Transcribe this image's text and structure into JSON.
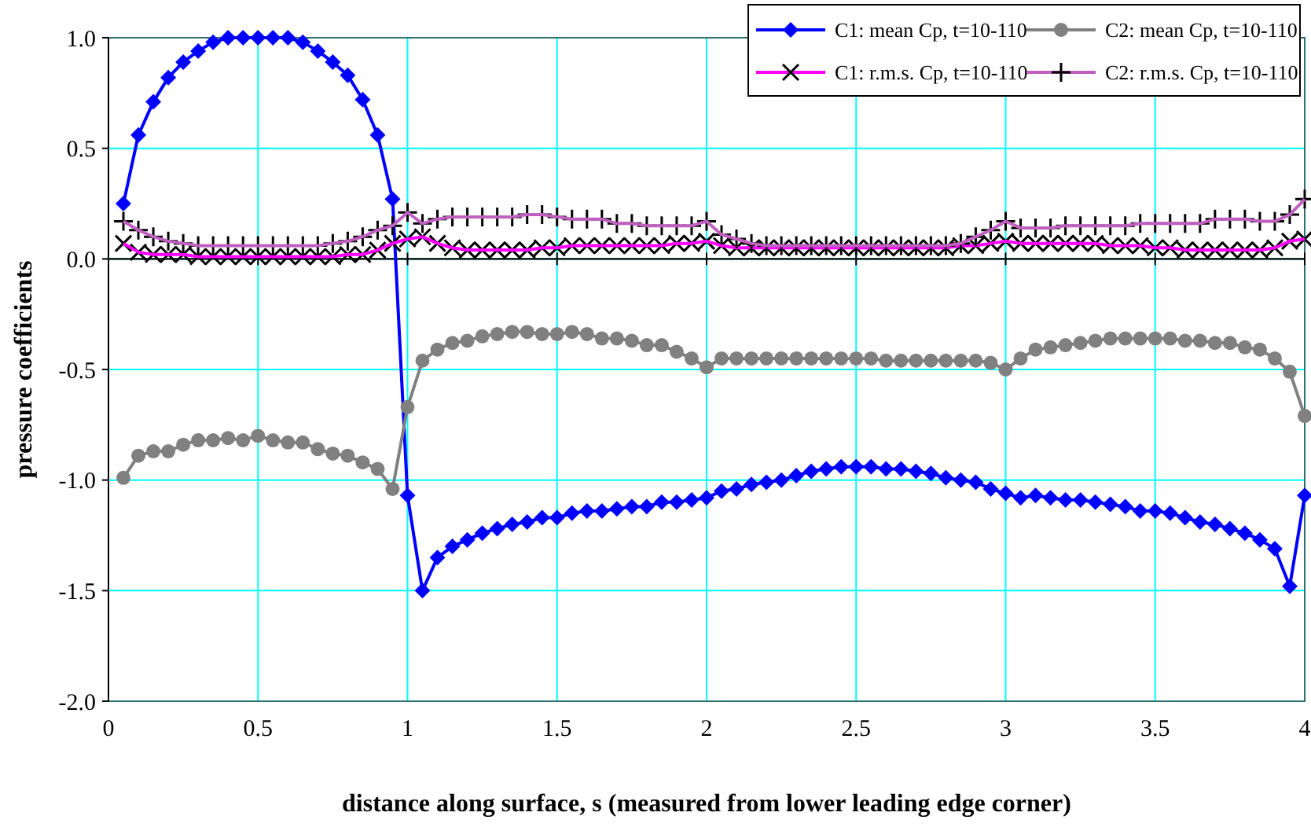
{
  "chart_data": {
    "type": "line",
    "xlabel": "distance along surface, s (measured from lower leading edge corner)",
    "ylabel": "pressure coefficients",
    "x": [
      0.05,
      0.1,
      0.15,
      0.2,
      0.25,
      0.3,
      0.35,
      0.4,
      0.45,
      0.5,
      0.55,
      0.6,
      0.65,
      0.7,
      0.75,
      0.8,
      0.85,
      0.9,
      0.95,
      1.0,
      1.05,
      1.1,
      1.15,
      1.2,
      1.25,
      1.3,
      1.35,
      1.4,
      1.45,
      1.5,
      1.55,
      1.6,
      1.65,
      1.7,
      1.75,
      1.8,
      1.85,
      1.9,
      1.95,
      2.0,
      2.05,
      2.1,
      2.15,
      2.2,
      2.25,
      2.3,
      2.35,
      2.4,
      2.45,
      2.5,
      2.55,
      2.6,
      2.65,
      2.7,
      2.75,
      2.8,
      2.85,
      2.9,
      2.95,
      3.0,
      3.05,
      3.1,
      3.15,
      3.2,
      3.25,
      3.3,
      3.35,
      3.4,
      3.45,
      3.5,
      3.55,
      3.6,
      3.65,
      3.7,
      3.75,
      3.8,
      3.85,
      3.9,
      3.95,
      4.0
    ],
    "series": [
      {
        "name": "C1: mean Cp, t=10-110",
        "color": "#0000ff",
        "marker": "diamond",
        "values": [
          0.25,
          0.56,
          0.71,
          0.82,
          0.89,
          0.94,
          0.98,
          1.0,
          1.0,
          1.0,
          1.0,
          1.0,
          0.98,
          0.94,
          0.89,
          0.83,
          0.72,
          0.56,
          0.27,
          -1.07,
          -1.5,
          -1.35,
          -1.3,
          -1.27,
          -1.24,
          -1.22,
          -1.2,
          -1.19,
          -1.17,
          -1.17,
          -1.15,
          -1.14,
          -1.14,
          -1.13,
          -1.12,
          -1.12,
          -1.1,
          -1.1,
          -1.09,
          -1.08,
          -1.05,
          -1.04,
          -1.02,
          -1.01,
          -1.0,
          -0.98,
          -0.96,
          -0.95,
          -0.94,
          -0.94,
          -0.94,
          -0.95,
          -0.95,
          -0.96,
          -0.97,
          -0.99,
          -1.0,
          -1.01,
          -1.04,
          -1.06,
          -1.08,
          -1.07,
          -1.08,
          -1.09,
          -1.09,
          -1.1,
          -1.11,
          -1.12,
          -1.14,
          -1.14,
          -1.15,
          -1.17,
          -1.19,
          -1.2,
          -1.22,
          -1.24,
          -1.27,
          -1.31,
          -1.48,
          -1.07
        ]
      },
      {
        "name": "C2: mean Cp, t=10-110",
        "color": "#808080",
        "marker": "circle",
        "values": [
          -0.99,
          -0.89,
          -0.87,
          -0.87,
          -0.84,
          -0.82,
          -0.82,
          -0.81,
          -0.82,
          -0.8,
          -0.82,
          -0.83,
          -0.83,
          -0.86,
          -0.88,
          -0.89,
          -0.92,
          -0.95,
          -1.04,
          -0.67,
          -0.46,
          -0.41,
          -0.38,
          -0.37,
          -0.35,
          -0.34,
          -0.33,
          -0.33,
          -0.34,
          -0.34,
          -0.33,
          -0.34,
          -0.36,
          -0.36,
          -0.37,
          -0.39,
          -0.39,
          -0.42,
          -0.45,
          -0.49,
          -0.45,
          -0.45,
          -0.45,
          -0.45,
          -0.45,
          -0.45,
          -0.45,
          -0.45,
          -0.45,
          -0.45,
          -0.45,
          -0.46,
          -0.46,
          -0.46,
          -0.46,
          -0.46,
          -0.46,
          -0.46,
          -0.47,
          -0.5,
          -0.45,
          -0.41,
          -0.4,
          -0.39,
          -0.38,
          -0.37,
          -0.36,
          -0.36,
          -0.36,
          -0.36,
          -0.36,
          -0.37,
          -0.37,
          -0.38,
          -0.38,
          -0.4,
          -0.41,
          -0.45,
          -0.51,
          -0.71
        ]
      },
      {
        "name": "C1: r.m.s. Cp, t=10-110",
        "color": "#ff00ff",
        "marker": "x",
        "values": [
          0.07,
          0.03,
          0.02,
          0.02,
          0.02,
          0.01,
          0.01,
          0.01,
          0.01,
          0.01,
          0.01,
          0.01,
          0.01,
          0.01,
          0.01,
          0.02,
          0.02,
          0.04,
          0.07,
          0.09,
          0.1,
          0.07,
          0.05,
          0.04,
          0.04,
          0.04,
          0.04,
          0.04,
          0.05,
          0.05,
          0.06,
          0.06,
          0.06,
          0.06,
          0.06,
          0.06,
          0.06,
          0.07,
          0.07,
          0.08,
          0.06,
          0.05,
          0.05,
          0.05,
          0.05,
          0.05,
          0.05,
          0.05,
          0.05,
          0.05,
          0.05,
          0.05,
          0.05,
          0.05,
          0.05,
          0.05,
          0.06,
          0.06,
          0.07,
          0.08,
          0.07,
          0.07,
          0.07,
          0.07,
          0.07,
          0.07,
          0.06,
          0.06,
          0.06,
          0.05,
          0.05,
          0.04,
          0.04,
          0.04,
          0.04,
          0.04,
          0.04,
          0.05,
          0.08,
          0.09
        ]
      },
      {
        "name": "C2: r.m.s. Cp, t=10-110",
        "color": "#c060c0",
        "marker": "cross",
        "values": [
          0.17,
          0.13,
          0.1,
          0.08,
          0.07,
          0.06,
          0.06,
          0.06,
          0.06,
          0.06,
          0.06,
          0.06,
          0.06,
          0.06,
          0.07,
          0.08,
          0.1,
          0.13,
          0.15,
          0.21,
          0.16,
          0.18,
          0.19,
          0.19,
          0.19,
          0.19,
          0.19,
          0.2,
          0.2,
          0.19,
          0.18,
          0.18,
          0.18,
          0.16,
          0.16,
          0.15,
          0.15,
          0.15,
          0.15,
          0.17,
          0.11,
          0.09,
          0.07,
          0.06,
          0.06,
          0.06,
          0.06,
          0.06,
          0.06,
          0.06,
          0.06,
          0.06,
          0.06,
          0.06,
          0.06,
          0.06,
          0.07,
          0.1,
          0.13,
          0.17,
          0.14,
          0.14,
          0.14,
          0.15,
          0.15,
          0.15,
          0.15,
          0.15,
          0.16,
          0.16,
          0.16,
          0.16,
          0.16,
          0.18,
          0.18,
          0.18,
          0.17,
          0.17,
          0.2,
          0.27
        ]
      }
    ],
    "xlim": [
      0,
      4
    ],
    "xticks": [
      0,
      0.5,
      1,
      1.5,
      2,
      2.5,
      3,
      3.5,
      4
    ],
    "ylim": [
      -2,
      1
    ],
    "yticks": [
      {
        "value": -2,
        "label": "-2.0"
      },
      {
        "value": -1.5,
        "label": "-1.5"
      },
      {
        "value": -1,
        "label": "-1.0"
      },
      {
        "value": -0.5,
        "label": "-0.5"
      },
      {
        "value": 0,
        "label": "0.0"
      },
      {
        "value": 0.5,
        "label": "0.5"
      },
      {
        "value": 1,
        "label": "1.0"
      }
    ],
    "grid": true,
    "legend": "top right",
    "line_style": "solid"
  }
}
